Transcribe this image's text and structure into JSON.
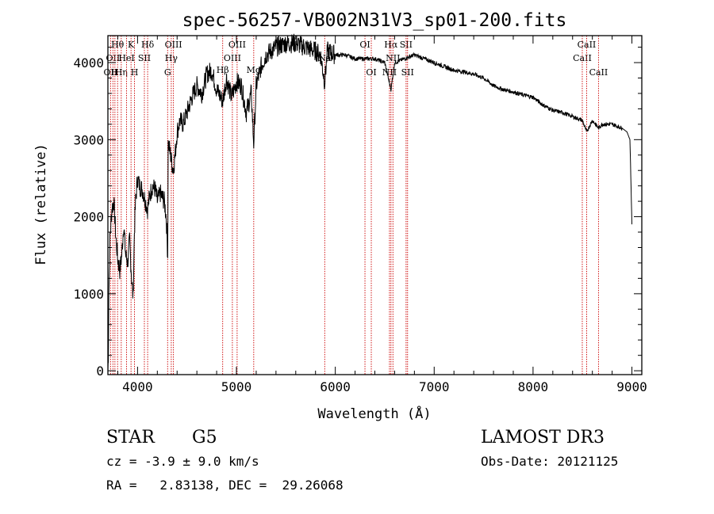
{
  "chart_data": {
    "type": "line",
    "title": "spec-56257-VB002N31V3_sp01-200.fits",
    "xlabel": "Wavelength (Å)",
    "ylabel": "Flux (relative)",
    "xlim": [
      3700,
      9100
    ],
    "ylim": [
      -50,
      4350
    ],
    "xticks": [
      4000,
      5000,
      6000,
      7000,
      8000,
      9000
    ],
    "yticks": [
      0,
      1000,
      2000,
      3000,
      4000
    ],
    "series": [
      {
        "name": "flux",
        "x": [
          3700,
          3705,
          3710,
          3720,
          3740,
          3760,
          3780,
          3800,
          3820,
          3840,
          3860,
          3880,
          3900,
          3920,
          3940,
          3955,
          3968,
          3980,
          4000,
          4020,
          4050,
          4080,
          4101,
          4120,
          4150,
          4180,
          4200,
          4230,
          4250,
          4270,
          4290,
          4305,
          4310,
          4320,
          4340,
          4360,
          4380,
          4400,
          4430,
          4460,
          4500,
          4550,
          4600,
          4650,
          4700,
          4750,
          4800,
          4861,
          4900,
          4950,
          5000,
          5050,
          5100,
          5150,
          5175,
          5200,
          5250,
          5300,
          5400,
          5500,
          5600,
          5700,
          5800,
          5850,
          5893,
          5920,
          6000,
          6100,
          6200,
          6300,
          6400,
          6500,
          6563,
          6600,
          6700,
          6800,
          6900,
          7000,
          7100,
          7200,
          7300,
          7400,
          7500,
          7600,
          7700,
          7800,
          7900,
          8000,
          8100,
          8200,
          8300,
          8400,
          8498,
          8542,
          8600,
          8662,
          8700,
          8800,
          8900,
          8950,
          8980,
          9000
        ],
        "values": [
          0,
          200,
          1000,
          1700,
          2100,
          2200,
          1750,
          1450,
          1300,
          1500,
          1900,
          1500,
          1400,
          1700,
          1200,
          950,
          1800,
          2200,
          2500,
          2400,
          2350,
          2200,
          2100,
          2250,
          2400,
          2350,
          2200,
          2300,
          2250,
          2200,
          2000,
          1500,
          2950,
          2900,
          2750,
          2600,
          2800,
          3100,
          3250,
          3200,
          3350,
          3550,
          3700,
          3600,
          3850,
          3900,
          3650,
          3500,
          3800,
          3550,
          3750,
          3700,
          3350,
          3600,
          2950,
          3700,
          3950,
          4100,
          4200,
          4250,
          4250,
          4200,
          4150,
          4100,
          3750,
          4150,
          4100,
          4100,
          4050,
          4050,
          4050,
          4000,
          3650,
          4000,
          4050,
          4100,
          4050,
          4000,
          3950,
          3900,
          3880,
          3850,
          3800,
          3700,
          3650,
          3620,
          3580,
          3550,
          3450,
          3380,
          3350,
          3300,
          3250,
          3100,
          3250,
          3150,
          3200,
          3200,
          3150,
          3100,
          3000,
          1900
        ]
      }
    ],
    "lines": [
      {
        "x": 3727,
        "label": "OII",
        "row": 2
      },
      {
        "x": 3751,
        "label": "OII",
        "row": 1
      },
      {
        "x": 3771,
        "label": "H",
        "row": 2
      },
      {
        "x": 3798,
        "label": "Hθ",
        "row": 0
      },
      {
        "x": 3835,
        "label": "Hη",
        "row": 2
      },
      {
        "x": 3889,
        "label": "HeI",
        "row": 1
      },
      {
        "x": 3934,
        "label": "K",
        "row": 0
      },
      {
        "x": 3969,
        "label": "H",
        "row": 2
      },
      {
        "x": 4069,
        "label": "SII",
        "row": 1
      },
      {
        "x": 4102,
        "label": "Hδ",
        "row": 0
      },
      {
        "x": 4304,
        "label": "G",
        "row": 2
      },
      {
        "x": 4341,
        "label": "Hγ",
        "row": 1
      },
      {
        "x": 4363,
        "label": "OIII",
        "row": 0
      },
      {
        "x": 4861,
        "label": "Hβ",
        "row": 3
      },
      {
        "x": 4959,
        "label": "OIII",
        "row": 1
      },
      {
        "x": 5007,
        "label": "OIII",
        "row": 0
      },
      {
        "x": 5175,
        "label": "Mg",
        "row": 3
      },
      {
        "x": 5893,
        "label": "Na",
        "row": 1
      },
      {
        "x": 6300,
        "label": "OI",
        "row": 0
      },
      {
        "x": 6364,
        "label": "OI",
        "row": 2
      },
      {
        "x": 6548,
        "label": "NII",
        "row": 2
      },
      {
        "x": 6563,
        "label": "Hα",
        "row": 0
      },
      {
        "x": 6583,
        "label": "NII",
        "row": 1
      },
      {
        "x": 6716,
        "label": "SII",
        "row": 0
      },
      {
        "x": 6731,
        "label": "SII",
        "row": 2
      },
      {
        "x": 8498,
        "label": "CaII",
        "row": 1
      },
      {
        "x": 8542,
        "label": "CaII",
        "row": 0
      },
      {
        "x": 8662,
        "label": "CaII",
        "row": 2
      }
    ],
    "line_color": "#cc0000"
  },
  "info": {
    "object_class": "STAR",
    "subclass": "G5",
    "survey": "LAMOST DR3",
    "redshift": "cz = -3.9 ± 9.0 km/s",
    "obs_date": "Obs-Date: 20121125",
    "coords": "RA =   2.83138, DEC =  29.26068"
  }
}
